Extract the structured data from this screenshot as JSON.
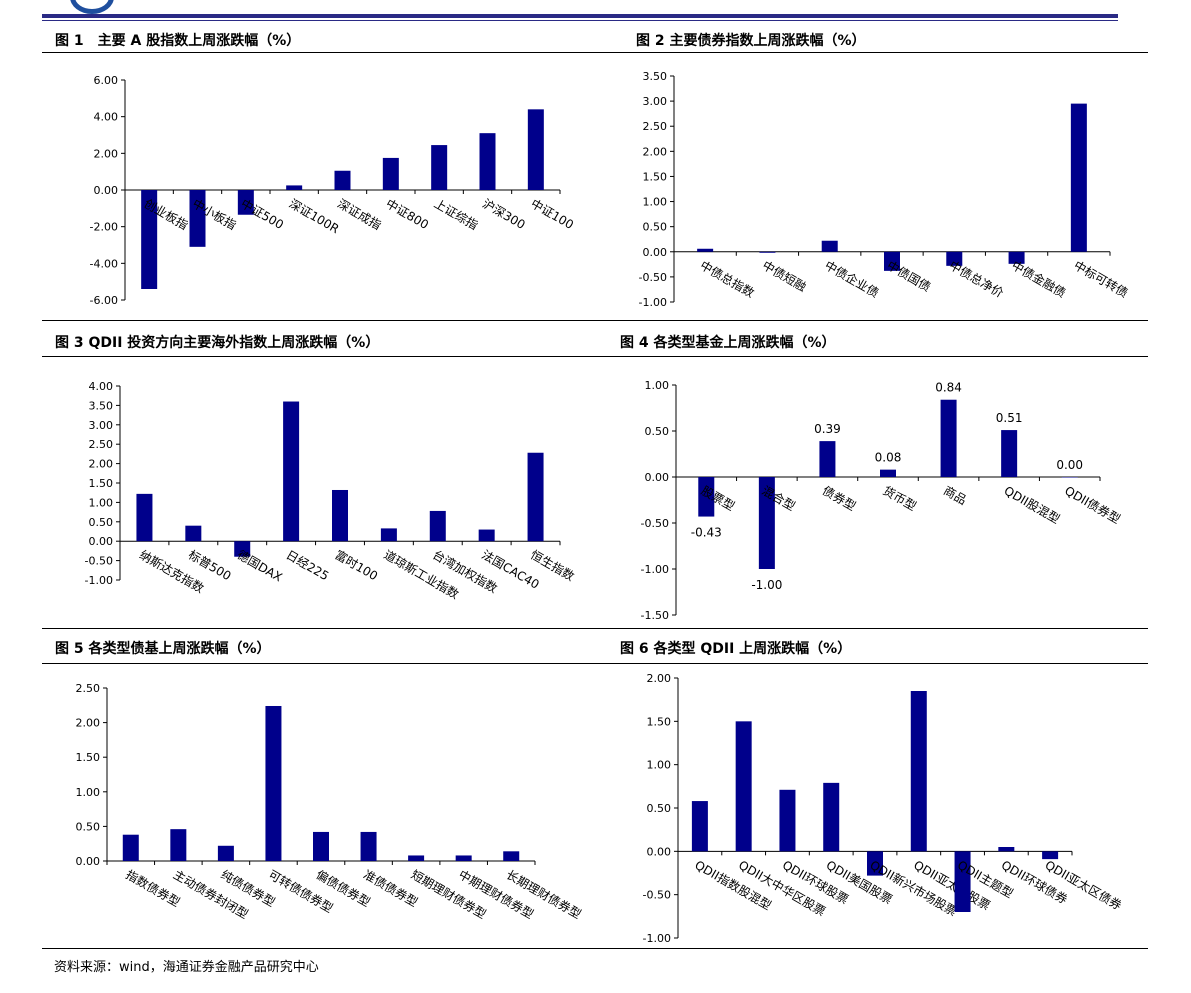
{
  "footer": "资料来源：wind，海通证券金融产品研究中心",
  "chart_data": [
    {
      "id": "c1",
      "type": "bar",
      "title": "图 1　主要 A 股指数上周涨跌幅（%）",
      "categories": [
        "创业板指",
        "中小板指",
        "中证500",
        "深证100R",
        "深证成指",
        "中证800",
        "上证综指",
        "沪深300",
        "中证100"
      ],
      "values": [
        -5.4,
        -3.1,
        -1.35,
        0.25,
        1.05,
        1.75,
        2.45,
        3.1,
        4.4
      ],
      "ylim": [
        -6,
        6
      ],
      "yticks": [
        6,
        4,
        2,
        0,
        -2,
        -4,
        -6
      ],
      "tick_decimals": 2,
      "grid": false,
      "legend": "none"
    },
    {
      "id": "c2",
      "type": "bar",
      "title": "图 2 主要债券指数上周涨跌幅（%）",
      "categories": [
        "中债总指数",
        "中债短融",
        "中债企业债",
        "中债国债",
        "中债总净价",
        "中债金融债",
        "中标可转债"
      ],
      "values": [
        0.06,
        -0.02,
        0.22,
        -0.38,
        -0.28,
        -0.24,
        2.95
      ],
      "ylim": [
        -1,
        3.5
      ],
      "yticks": [
        3.5,
        3.0,
        2.5,
        2.0,
        1.5,
        1.0,
        0.5,
        0.0,
        -0.5,
        -1.0
      ],
      "tick_decimals": 2,
      "grid": false,
      "legend": "none"
    },
    {
      "id": "c3",
      "type": "bar",
      "title": "图 3 QDII 投资方向主要海外指数上周涨跌幅（%）",
      "categories": [
        "纳斯达克指数",
        "标普500",
        "德国DAX",
        "日经225",
        "富时100",
        "道琼斯工业指数",
        "台湾加权指数",
        "法国CAC40",
        "恒生指数"
      ],
      "values": [
        1.22,
        0.4,
        -0.4,
        3.6,
        1.32,
        0.33,
        0.78,
        0.3,
        2.28
      ],
      "ylim": [
        -1,
        4
      ],
      "yticks": [
        4,
        3.5,
        3,
        2.5,
        2,
        1.5,
        1,
        0.5,
        0,
        -0.5,
        -1
      ],
      "tick_decimals": 2,
      "grid": false,
      "legend": "none"
    },
    {
      "id": "c4",
      "type": "bar",
      "title": "图 4 各类型基金上周涨跌幅（%）",
      "categories": [
        "股票型",
        "混合型",
        "债券型",
        "货币型",
        "商品",
        "QDII股混型",
        "QDII债券型"
      ],
      "values": [
        -0.43,
        -1.0,
        0.39,
        0.08,
        0.84,
        0.51,
        0.0
      ],
      "data_labels": [
        "-0.43",
        "-1.00",
        "0.39",
        "0.08",
        "0.84",
        "0.51",
        "0.00"
      ],
      "ylim": [
        -1.5,
        1
      ],
      "yticks": [
        1,
        0.5,
        0,
        -0.5,
        -1,
        -1.5
      ],
      "tick_decimals": 2,
      "grid": false,
      "legend": "none"
    },
    {
      "id": "c5",
      "type": "bar",
      "title": "图 5 各类型债基上周涨跌幅（%）",
      "categories": [
        "指数债券型",
        "主动债券封闭型",
        "纯债债券型",
        "可转债债券型",
        "偏债债券型",
        "准债债券型",
        "短期理财债券型",
        "中期理财债券型",
        "长期理财债券型"
      ],
      "values": [
        0.38,
        0.46,
        0.22,
        2.24,
        0.42,
        0.42,
        0.08,
        0.08,
        0.14
      ],
      "ylim": [
        0,
        2.5
      ],
      "yticks": [
        2.5,
        2,
        1.5,
        1,
        0.5,
        0
      ],
      "tick_decimals": 2,
      "grid": false,
      "legend": "none"
    },
    {
      "id": "c6",
      "type": "bar",
      "title": "图 6 各类型 QDII 上周涨跌幅（%）",
      "categories": [
        "QDII指数股混型",
        "QDII大中华区股票",
        "QDII环球股票",
        "QDII美国股票",
        "QDII新兴市场股票",
        "QDII亚太区股票",
        "QDII主题型",
        "QDII环球债券",
        "QDII亚太区债券"
      ],
      "values": [
        0.58,
        1.5,
        0.71,
        0.79,
        -0.28,
        1.85,
        -0.7,
        0.05,
        -0.09
      ],
      "ylim": [
        -1,
        2
      ],
      "yticks": [
        2,
        1.5,
        1,
        0.5,
        0,
        -0.5,
        -1
      ],
      "tick_decimals": 2,
      "grid": false,
      "legend": "none"
    }
  ]
}
